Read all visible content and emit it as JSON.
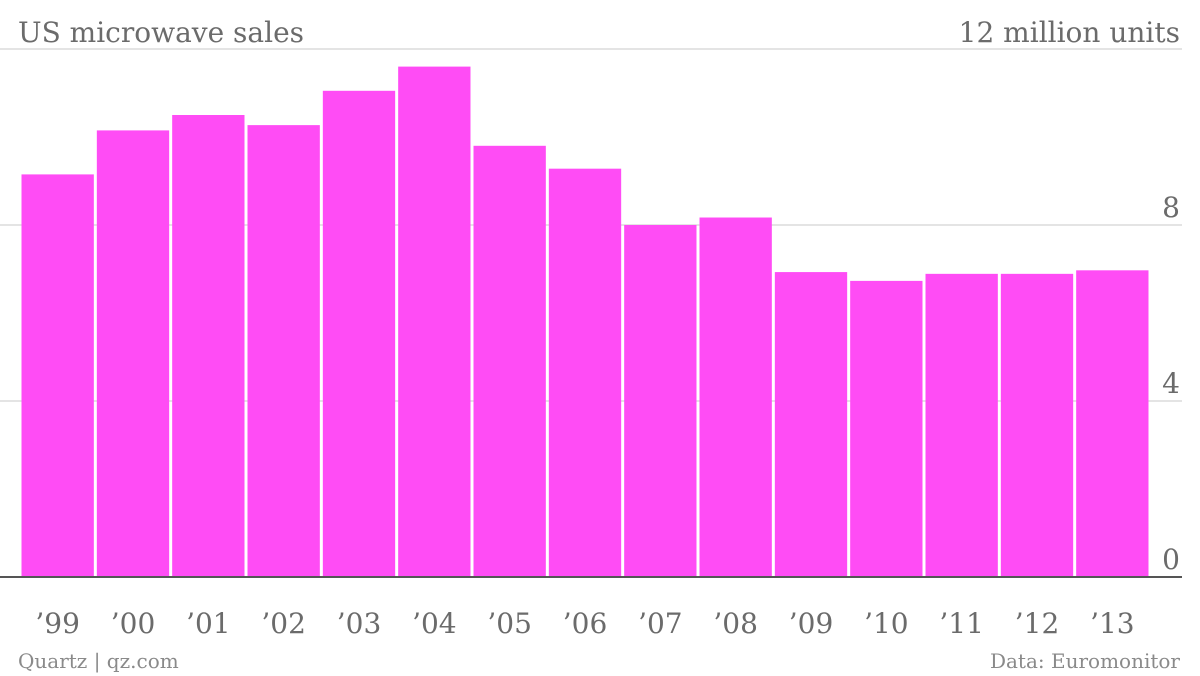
{
  "chart_data": {
    "type": "bar",
    "title": "US microwave sales",
    "unit_label": "12 million units",
    "categories": [
      "’99",
      "’00",
      "’01",
      "’02",
      "’03",
      "’04",
      "’05",
      "’06",
      "’07",
      "’08",
      "’09",
      "’10",
      "’11",
      "’12",
      "’13"
    ],
    "values": [
      9.15,
      10.15,
      10.5,
      10.27,
      11.05,
      11.6,
      9.8,
      9.28,
      8.0,
      8.17,
      6.93,
      6.73,
      6.89,
      6.89,
      6.97
    ],
    "ylim": [
      0,
      12
    ],
    "yticks": [
      0,
      4,
      8
    ],
    "bar_color": "#ff4cf5",
    "grid": true,
    "y_axis_side": "right",
    "source_left": "Quartz | qz.com",
    "source_right": "Data: Euromonitor"
  }
}
